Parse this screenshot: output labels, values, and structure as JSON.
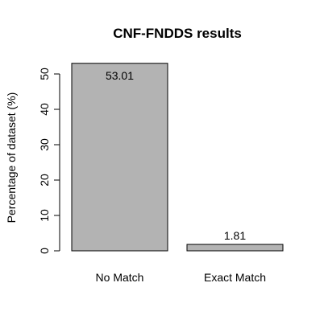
{
  "chart_data": {
    "type": "bar",
    "title": "CNF-FNDDS results",
    "xlabel": "",
    "ylabel": "Percentage of dataset (%)",
    "categories": [
      "No Match",
      "Exact Match"
    ],
    "values": [
      53.01,
      1.81
    ],
    "data_labels": [
      "53.01",
      "1.81"
    ],
    "ylim": [
      0,
      50
    ],
    "yticks": [
      0,
      10,
      20,
      30,
      40,
      50
    ],
    "ytick_labels": [
      "0",
      "10",
      "20",
      "30",
      "40",
      "50"
    ],
    "bar_color": "#b3b3b3",
    "grid": false,
    "legend": "none"
  }
}
